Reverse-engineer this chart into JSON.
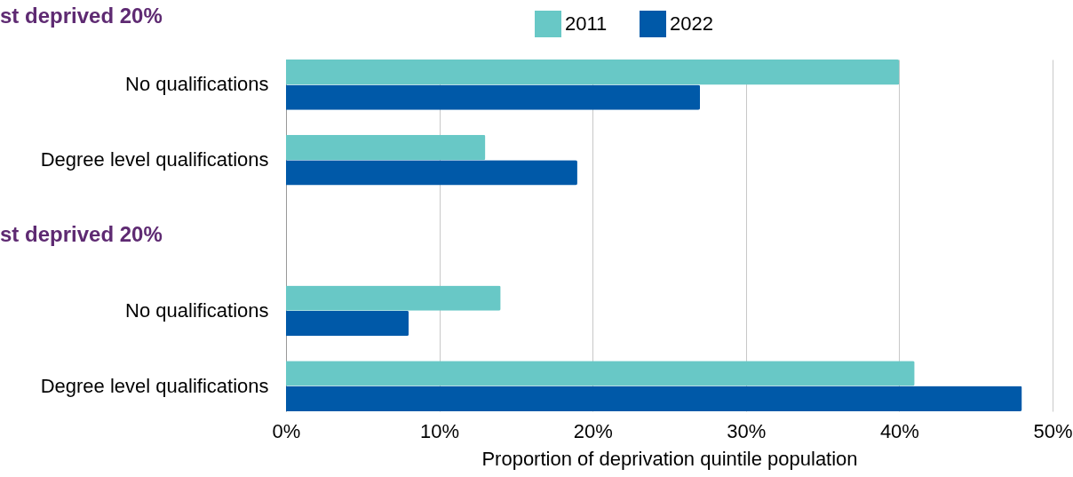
{
  "chart_data": {
    "type": "bar",
    "orientation": "horizontal",
    "categories": [
      "No qualifications",
      "Degree level qualifications",
      null,
      "No qualifications",
      "Degree level qualifications"
    ],
    "series": [
      {
        "name": "2011",
        "color": "#68c8c6",
        "values": [
          40,
          13,
          null,
          14,
          41
        ]
      },
      {
        "name": "2022",
        "color": "#0059a8",
        "values": [
          27,
          19,
          null,
          8,
          48
        ]
      }
    ],
    "xlabel": "Proportion of  deprivation quintile population",
    "xlim": [
      0,
      50
    ],
    "xticks": [
      {
        "value": 0,
        "label": "0%"
      },
      {
        "value": 10,
        "label": "10%"
      },
      {
        "value": 20,
        "label": "20%"
      },
      {
        "value": 30,
        "label": "30%"
      },
      {
        "value": 40,
        "label": "40%"
      },
      {
        "value": 50,
        "label": "50%"
      }
    ],
    "annotations": [
      "st deprived 20%",
      "st deprived 20%"
    ],
    "grid": "x",
    "legend": "top"
  }
}
